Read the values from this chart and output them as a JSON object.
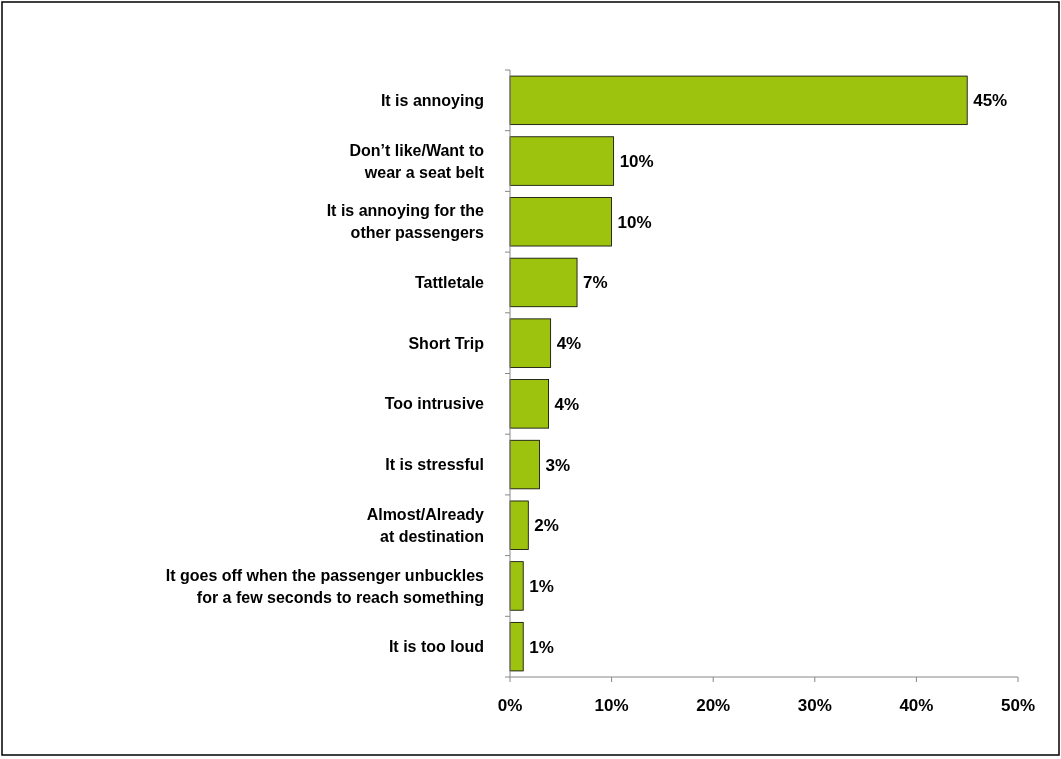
{
  "chart_data": {
    "type": "bar",
    "orientation": "horizontal",
    "categories": [
      "It is annoying",
      "Don’t like/Want to\nwear a seat belt",
      "It is annoying for the\nother passengers",
      "Tattletale",
      "Short Trip",
      "Too intrusive",
      "It is stressful",
      "Almost/Already\nat destination",
      "It goes off when the passenger unbuckles\nfor a few seconds to reach something",
      "It is too loud"
    ],
    "values": [
      45.0,
      10.2,
      10.0,
      6.6,
      4.0,
      3.8,
      2.9,
      1.8,
      1.3,
      1.3
    ],
    "value_labels": [
      "45%",
      "10%",
      "10%",
      "7%",
      "4%",
      "4%",
      "3%",
      "2%",
      "1%",
      "1%"
    ],
    "color": "#9dc30f",
    "xlim": [
      0,
      50
    ],
    "xticks": [
      {
        "value": 0,
        "label": "0%"
      },
      {
        "value": 10,
        "label": "10%"
      },
      {
        "value": 20,
        "label": "20%"
      },
      {
        "value": 30,
        "label": "30%"
      },
      {
        "value": 40,
        "label": "40%"
      },
      {
        "value": 50,
        "label": "50%"
      }
    ],
    "grid": false
  }
}
